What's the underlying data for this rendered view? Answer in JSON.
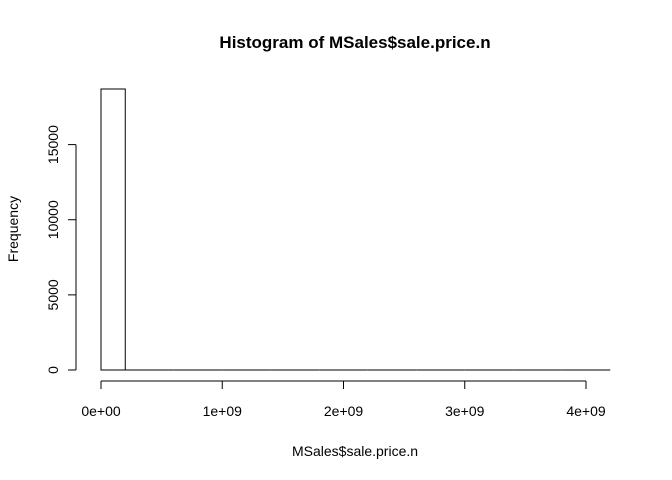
{
  "chart_data": {
    "type": "bar",
    "title": "Histogram of MSales$sale.price.n",
    "xlabel": "MSales$sale.price.n",
    "ylabel": "Frequency",
    "bins": [
      {
        "start": 0,
        "end": 200000000,
        "count": 18700
      },
      {
        "start": 200000000,
        "end": 400000000,
        "count": 0
      },
      {
        "start": 400000000,
        "end": 600000000,
        "count": 0
      },
      {
        "start": 600000000,
        "end": 800000000,
        "count": 0
      },
      {
        "start": 800000000,
        "end": 1000000000,
        "count": 0
      },
      {
        "start": 1000000000,
        "end": 1200000000,
        "count": 0
      },
      {
        "start": 1200000000,
        "end": 1400000000,
        "count": 0
      },
      {
        "start": 1400000000,
        "end": 1600000000,
        "count": 0
      },
      {
        "start": 1600000000,
        "end": 1800000000,
        "count": 0
      },
      {
        "start": 1800000000,
        "end": 2000000000,
        "count": 0
      },
      {
        "start": 2000000000,
        "end": 2200000000,
        "count": 0
      },
      {
        "start": 2200000000,
        "end": 2400000000,
        "count": 0
      },
      {
        "start": 2400000000,
        "end": 2600000000,
        "count": 0
      },
      {
        "start": 2600000000,
        "end": 2800000000,
        "count": 0
      },
      {
        "start": 2800000000,
        "end": 3000000000,
        "count": 0
      },
      {
        "start": 3000000000,
        "end": 3200000000,
        "count": 0
      },
      {
        "start": 3200000000,
        "end": 3400000000,
        "count": 0
      },
      {
        "start": 3400000000,
        "end": 3600000000,
        "count": 0
      },
      {
        "start": 3600000000,
        "end": 3800000000,
        "count": 0
      },
      {
        "start": 3800000000,
        "end": 4000000000,
        "count": 0
      },
      {
        "start": 4000000000,
        "end": 4200000000,
        "count": 0
      }
    ],
    "xlim": [
      0,
      4200000000
    ],
    "ylim": [
      0,
      18700
    ],
    "x_ticks": [
      {
        "value": 0,
        "label": "0e+00"
      },
      {
        "value": 1000000000,
        "label": "1e+09"
      },
      {
        "value": 2000000000,
        "label": "2e+09"
      },
      {
        "value": 3000000000,
        "label": "3e+09"
      },
      {
        "value": 4000000000,
        "label": "4e+09"
      }
    ],
    "y_ticks": [
      {
        "value": 0,
        "label": "0"
      },
      {
        "value": 5000,
        "label": "5000"
      },
      {
        "value": 10000,
        "label": "10000"
      },
      {
        "value": 15000,
        "label": "15000"
      }
    ],
    "colors": {
      "bar_fill": "#ffffff",
      "bar_stroke": "#000000",
      "axis": "#000000"
    }
  }
}
